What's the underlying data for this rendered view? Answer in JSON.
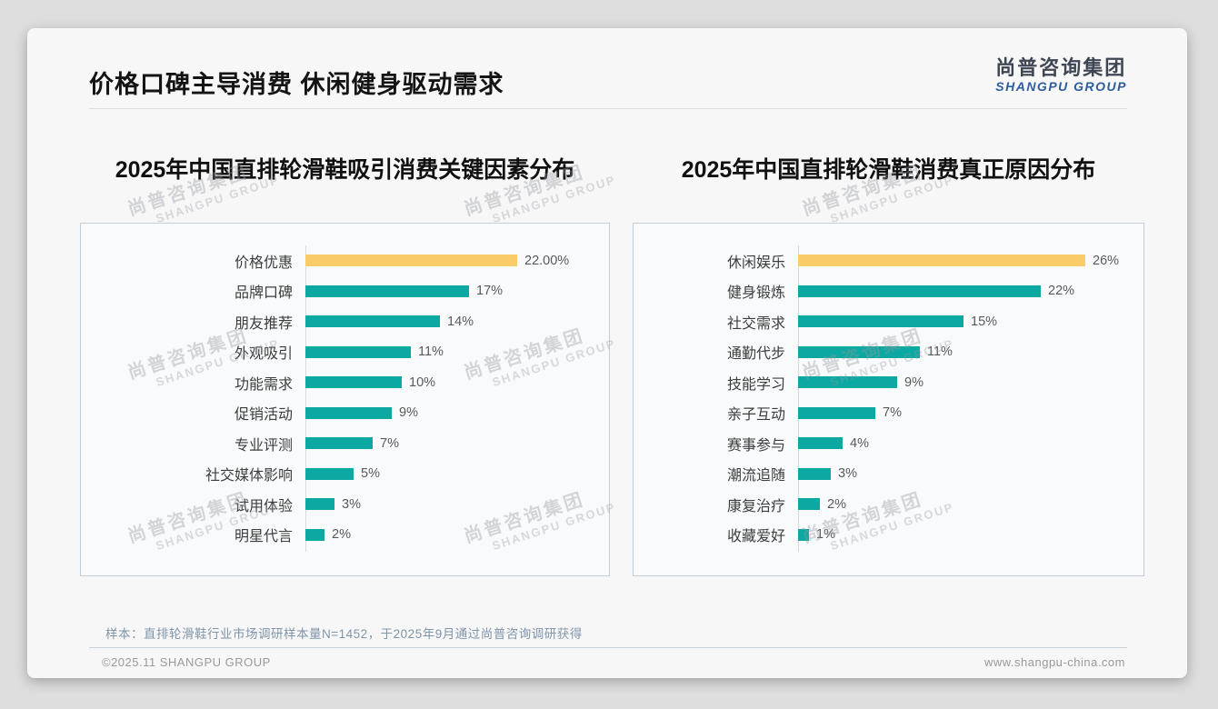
{
  "page": {
    "title": "价格口碑主导消费 休闲健身驱动需求",
    "logo": {
      "cn": "尚普咨询集团",
      "en": "SHANGPU GROUP"
    },
    "watermark": {
      "cn": "尚普咨询集团",
      "en": "SHANGPU GROUP"
    },
    "footer": {
      "note": "样本：直排轮滑鞋行业市场调研样本量N=1452，于2025年9月通过尚普咨询调研获得",
      "copyright": "©2025.11 SHANGPU GROUP",
      "website": "www.shangpu-china.com"
    },
    "colors": {
      "bar_primary": "#0BA9A1",
      "bar_highlight": "#FACB69",
      "panel_border": "#c5cfdb",
      "logo_blue": "#2d5d9f"
    }
  },
  "chart_data": [
    {
      "type": "bar",
      "orientation": "horizontal",
      "title": "2025年中国直排轮滑鞋吸引消费关键因素分布",
      "categories": [
        "价格优惠",
        "品牌口碑",
        "朋友推荐",
        "外观吸引",
        "功能需求",
        "促销活动",
        "专业评测",
        "社交媒体影响",
        "试用体验",
        "明星代言"
      ],
      "values": [
        22,
        17,
        14,
        11,
        10,
        9,
        7,
        5,
        3,
        2
      ],
      "value_labels": [
        "22.00%",
        "17%",
        "14%",
        "11%",
        "10%",
        "9%",
        "7%",
        "5%",
        "3%",
        "2%"
      ],
      "unit": "%",
      "highlight_index": 0,
      "data_labels": true,
      "axis_ticks_visible": false,
      "gridlines": false,
      "legend": false
    },
    {
      "type": "bar",
      "orientation": "horizontal",
      "title": "2025年中国直排轮滑鞋消费真正原因分布",
      "categories": [
        "休闲娱乐",
        "健身锻炼",
        "社交需求",
        "通勤代步",
        "技能学习",
        "亲子互动",
        "赛事参与",
        "潮流追随",
        "康复治疗",
        "收藏爱好"
      ],
      "values": [
        26,
        22,
        15,
        11,
        9,
        7,
        4,
        3,
        2,
        1
      ],
      "value_labels": [
        "26%",
        "22%",
        "15%",
        "11%",
        "9%",
        "7%",
        "4%",
        "3%",
        "2%",
        "1%"
      ],
      "unit": "%",
      "highlight_index": 0,
      "data_labels": true,
      "axis_ticks_visible": false,
      "gridlines": false,
      "legend": false
    }
  ]
}
